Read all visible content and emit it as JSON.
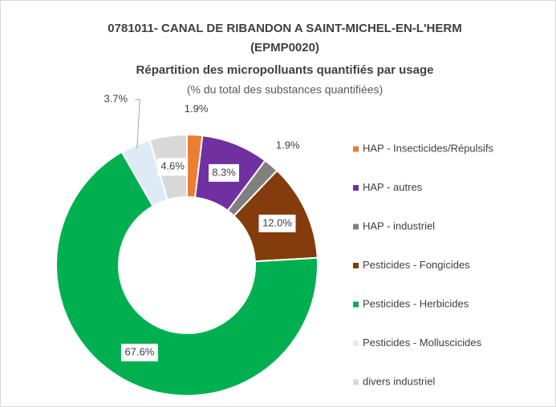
{
  "chart_data": {
    "type": "donut",
    "title": "0781011- CANAL DE RIBANDON A SAINT-MICHEL-EN-L'HERM",
    "title_code": "(EPMP0020)",
    "subtitle": "Répartition des micropolluants quantifiés par usage",
    "note": "(% du total des substances quantifiées)",
    "categories": [
      "HAP - Insecticides/Répulsifs",
      "HAP - autres",
      "HAP - industriel",
      "Pesticides - Fongicides",
      "Pesticides - Herbicides",
      "Pesticides - Molluscicides",
      "divers industriel"
    ],
    "values": [
      1.9,
      8.3,
      1.9,
      12.0,
      67.6,
      3.7,
      4.6
    ],
    "value_labels": [
      "1.9%",
      "8.3%",
      "1.9%",
      "12.0%",
      "67.6%",
      "3.7%",
      "4.6%"
    ],
    "colors": [
      "#ed7d31",
      "#7030a0",
      "#808080",
      "#843c0c",
      "#00b050",
      "#deebf7",
      "#d9d9d9"
    ],
    "legend": "right"
  }
}
